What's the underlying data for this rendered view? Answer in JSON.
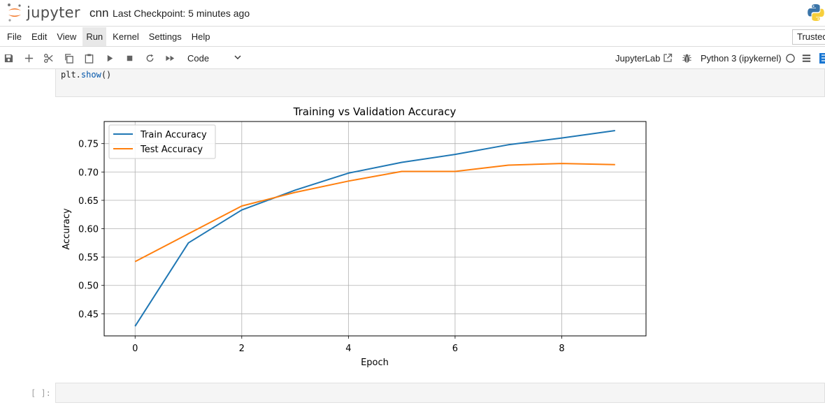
{
  "header": {
    "app_name": "jupyter",
    "notebook_name": "cnn",
    "checkpoint": "Last Checkpoint: 5 minutes ago"
  },
  "menu": {
    "items": [
      "File",
      "Edit",
      "View",
      "Run",
      "Kernel",
      "Settings",
      "Help"
    ],
    "active": "Run",
    "trusted": "Trusted"
  },
  "toolbar": {
    "cell_type": "Code",
    "jupyterlab_label": "JupyterLab",
    "kernel_name": "Python 3 (ipykernel)",
    "icons": [
      "save-icon",
      "add-cell-icon",
      "cut-icon",
      "copy-icon",
      "paste-icon",
      "run-icon",
      "stop-icon",
      "restart-icon",
      "fast-forward-icon"
    ]
  },
  "cells": {
    "code_prefix": "plt.",
    "code_fn": "show",
    "code_suffix": "()",
    "empty_prompt": "[ ]:"
  },
  "colors": {
    "train": "#1f77b4",
    "test": "#ff7f0e",
    "accent": "#f37626"
  },
  "chart_data": {
    "type": "line",
    "title": "Training vs Validation Accuracy",
    "xlabel": "Epoch",
    "ylabel": "Accuracy",
    "x": [
      0,
      1,
      2,
      3,
      4,
      5,
      6,
      7,
      8,
      9
    ],
    "series": [
      {
        "name": "Train Accuracy",
        "values": [
          0.428,
          0.575,
          0.633,
          0.668,
          0.698,
          0.717,
          0.731,
          0.748,
          0.76,
          0.773
        ]
      },
      {
        "name": "Test Accuracy",
        "values": [
          0.542,
          0.591,
          0.64,
          0.664,
          0.684,
          0.701,
          0.701,
          0.712,
          0.715,
          0.713
        ]
      }
    ],
    "xticks": [
      "0",
      "2",
      "4",
      "6",
      "8"
    ],
    "yticks": [
      "0.45",
      "0.50",
      "0.55",
      "0.60",
      "0.65",
      "0.70",
      "0.75"
    ],
    "xlim": [
      -0.58,
      9.58
    ],
    "ylim": [
      0.411,
      0.789
    ],
    "grid": true,
    "legend_position": "top-left"
  }
}
